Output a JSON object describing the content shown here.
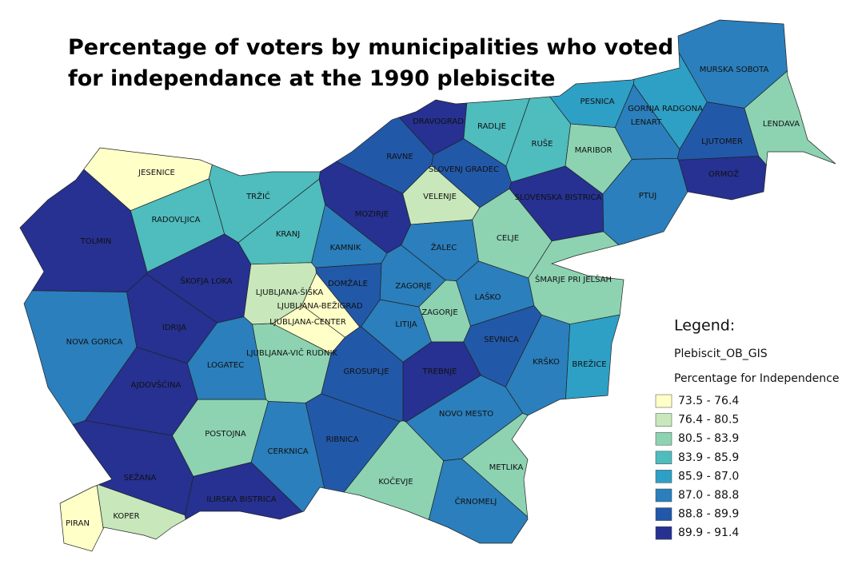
{
  "title": [
    "Percentage of voters by municipalities who voted",
    "for independance at the 1990 plebiscite"
  ],
  "legend": {
    "heading": "Legend:",
    "layer": "Plebiscit_OB_GIS",
    "field": "Percentage for Independence",
    "classes": [
      {
        "label": "73.5 - 76.4",
        "color": "#ffffc8"
      },
      {
        "label": "76.4 - 80.5",
        "color": "#c8e8bc"
      },
      {
        "label": "80.5 - 83.9",
        "color": "#8dd3b2"
      },
      {
        "label": "83.9 - 85.9",
        "color": "#4fbcbe"
      },
      {
        "label": "85.9 - 87.0",
        "color": "#2ea0c6"
      },
      {
        "label": "87.0 - 88.8",
        "color": "#2b7fbc"
      },
      {
        "label": "88.8 - 89.9",
        "color": "#2258a8"
      },
      {
        "label": "89.9 - 91.4",
        "color": "#263191"
      }
    ]
  },
  "municipalities": [
    {
      "name": "JESENICE",
      "color": "#ffffc8"
    },
    {
      "name": "TRŽIČ",
      "color": "#4fbcbe"
    },
    {
      "name": "RADOVLJICA",
      "color": "#4fbcbe"
    },
    {
      "name": "KRANJ",
      "color": "#4fbcbe"
    },
    {
      "name": "TOLMIN",
      "color": "#263191"
    },
    {
      "name": "ŠKOFJA LOKA",
      "color": "#263191"
    },
    {
      "name": "IDRIJA",
      "color": "#263191"
    },
    {
      "name": "NOVA GORICA",
      "color": "#2b7fbc"
    },
    {
      "name": "AJDOVŠČINA",
      "color": "#263191"
    },
    {
      "name": "SEŽANA",
      "color": "#263191"
    },
    {
      "name": "KOPER",
      "color": "#c8e8bc"
    },
    {
      "name": "PIRAN",
      "color": "#ffffc8"
    },
    {
      "name": "ILIRSKA BISTRICA",
      "color": "#263191"
    },
    {
      "name": "POSTOJNA",
      "color": "#8dd3b2"
    },
    {
      "name": "CERKNICA",
      "color": "#2b7fbc"
    },
    {
      "name": "LOGATEC",
      "color": "#2b7fbc"
    },
    {
      "name": "LJUBLJANA-VIČ RUDNIK",
      "color": "#8dd3b2"
    },
    {
      "name": "LJUBLJANA-CENTER",
      "color": "#ffffc8"
    },
    {
      "name": "LJUBLJANA-ŠIŠKA",
      "color": "#c8e8bc"
    },
    {
      "name": "LJUBLJANA-BEŽIGRAD",
      "color": "#ffffc8"
    },
    {
      "name": "KAMNIK",
      "color": "#2b7fbc"
    },
    {
      "name": "DOMŽALE",
      "color": "#2258a8"
    },
    {
      "name": "MOZIRJE",
      "color": "#263191"
    },
    {
      "name": "VELENJE",
      "color": "#c8e8bc"
    },
    {
      "name": "CELJE",
      "color": "#8dd3b2"
    },
    {
      "name": "ŽALEC",
      "color": "#2b7fbc"
    },
    {
      "name": "ZAGORJE",
      "color": "#2b7fbc"
    },
    {
      "name": "ZAGORJE",
      "color": "#8dd3b2"
    },
    {
      "name": "LAŠKO",
      "color": "#2b7fbc"
    },
    {
      "name": "LITIJA",
      "color": "#2b7fbc"
    },
    {
      "name": "GROSUPLJE",
      "color": "#2258a8"
    },
    {
      "name": "TREBNJE",
      "color": "#263191"
    },
    {
      "name": "SEVNICA",
      "color": "#2258a8"
    },
    {
      "name": "KRŠKO",
      "color": "#2b7fbc"
    },
    {
      "name": "BREŽICE",
      "color": "#2ea0c6"
    },
    {
      "name": "ŠMARJE PRI JELŠAH",
      "color": "#8dd3b2"
    },
    {
      "name": "NOVO MESTO",
      "color": "#2b7fbc"
    },
    {
      "name": "RIBNICA",
      "color": "#2258a8"
    },
    {
      "name": "KOČEVJE",
      "color": "#8dd3b2"
    },
    {
      "name": "METLIKA",
      "color": "#8dd3b2"
    },
    {
      "name": "ČRNOMELJ",
      "color": "#2b7fbc"
    },
    {
      "name": "SLOVENSKA BISTRICA",
      "color": "#263191"
    },
    {
      "name": "SLOVENJ GRADEC",
      "color": "#2258a8"
    },
    {
      "name": "RAVNE",
      "color": "#2258a8"
    },
    {
      "name": "DRAVOGRAD",
      "color": "#263191"
    },
    {
      "name": "RADLJE",
      "color": "#4fbcbe"
    },
    {
      "name": "RUŠE",
      "color": "#4fbcbe"
    },
    {
      "name": "MARIBOR",
      "color": "#8dd3b2"
    },
    {
      "name": "PTUJ",
      "color": "#2b7fbc"
    },
    {
      "name": "ORMOŽ",
      "color": "#263191"
    },
    {
      "name": "LJUTOMER",
      "color": "#2258a8"
    },
    {
      "name": "LENDAVA",
      "color": "#8dd3b2"
    },
    {
      "name": "LENART",
      "color": "#2b7fbc"
    },
    {
      "name": "GORNJA RADGONA",
      "color": "#2ea0c6"
    },
    {
      "name": "PESNICA",
      "color": "#2ea0c6"
    },
    {
      "name": "MURSKA SOBOTA",
      "color": "#2b7fbc"
    }
  ]
}
